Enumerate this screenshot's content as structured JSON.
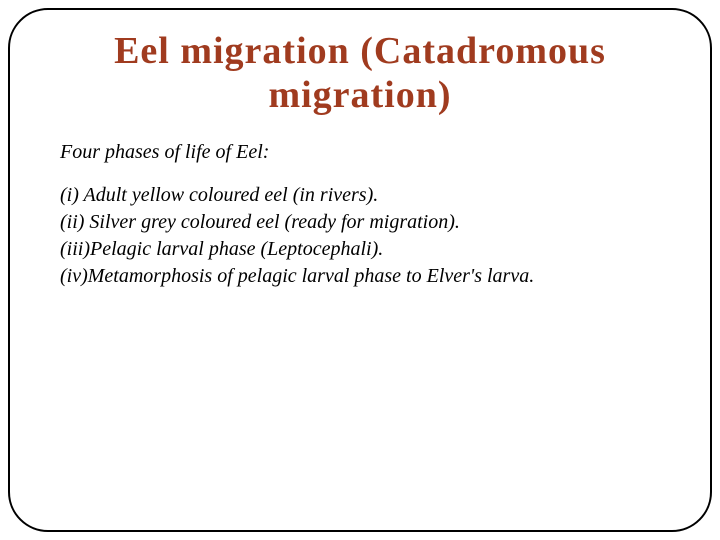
{
  "title": {
    "text": "Eel migration (Catadromous migration)",
    "color": "#a03b1f",
    "fontsize": 38
  },
  "subtitle": {
    "text": "Four phases of life of Eel:",
    "color": "#000000",
    "fontsize": 20
  },
  "phases": {
    "items": [
      "(i)  Adult yellow coloured eel (in rivers).",
      "(ii) Silver grey coloured eel (ready for migration).",
      "(iii)Pelagic larval phase (Leptocephali).",
      "(iv)Metamorphosis of pelagic larval phase to Elver's larva."
    ],
    "color": "#000000",
    "fontsize": 20
  },
  "frame": {
    "border_color": "#000000",
    "border_width": 2,
    "border_radius": 40,
    "background": "#ffffff"
  }
}
